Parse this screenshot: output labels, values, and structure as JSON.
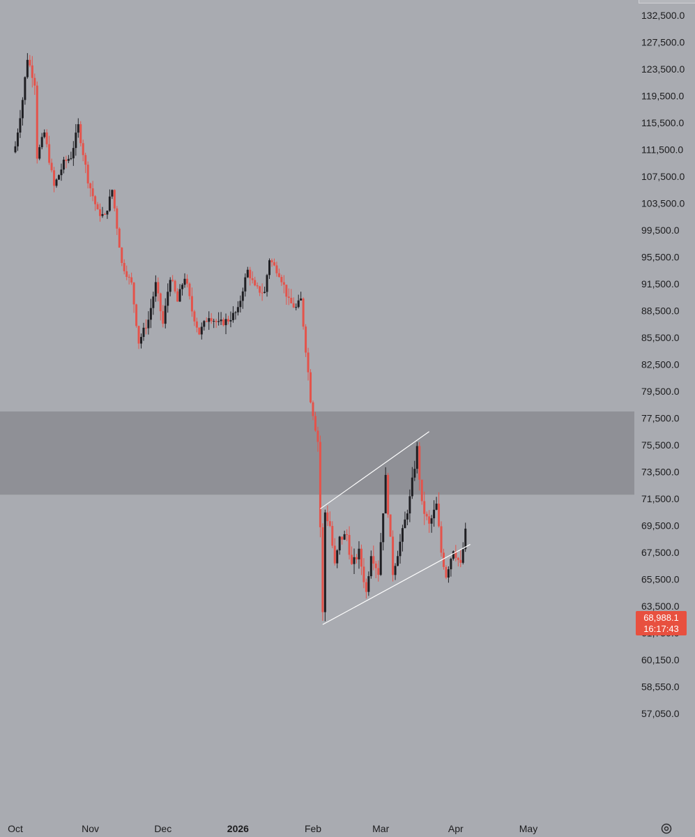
{
  "chart_data": {
    "type": "candlestick",
    "title": "",
    "xlabel": "",
    "ylabel": "",
    "x_range": [
      "2025-10-01",
      "2026-05-18"
    ],
    "y_ticks": [
      {
        "value": 132500,
        "label": "132,500.0"
      },
      {
        "value": 127500,
        "label": "127,500.0"
      },
      {
        "value": 123500,
        "label": "123,500.0"
      },
      {
        "value": 119500,
        "label": "119,500.0"
      },
      {
        "value": 115500,
        "label": "115,500.0"
      },
      {
        "value": 111500,
        "label": "111,500.0"
      },
      {
        "value": 107500,
        "label": "107,500.0"
      },
      {
        "value": 103500,
        "label": "103,500.0"
      },
      {
        "value": 99500,
        "label": "99,500.0"
      },
      {
        "value": 95500,
        "label": "95,500.0"
      },
      {
        "value": 91500,
        "label": "91,500.0"
      },
      {
        "value": 88500,
        "label": "88,500.0"
      },
      {
        "value": 85500,
        "label": "85,500.0"
      },
      {
        "value": 82500,
        "label": "82,500.0"
      },
      {
        "value": 79500,
        "label": "79,500.0"
      },
      {
        "value": 77500,
        "label": "77,500.0"
      },
      {
        "value": 75500,
        "label": "75,500.0"
      },
      {
        "value": 73500,
        "label": "73,500.0"
      },
      {
        "value": 71500,
        "label": "71,500.0"
      },
      {
        "value": 69500,
        "label": "69,500.0"
      },
      {
        "value": 67500,
        "label": "67,500.0"
      },
      {
        "value": 65500,
        "label": "65,500.0"
      },
      {
        "value": 63500,
        "label": "63,500.0"
      },
      {
        "value": 61750,
        "label": "61,750.0"
      },
      {
        "value": 60150,
        "label": "60,150.0"
      },
      {
        "value": 58550,
        "label": "58,550.0"
      },
      {
        "value": 57050,
        "label": "57,050.0"
      }
    ],
    "x_ticks": [
      {
        "date": "2025-10-01",
        "label": "Oct",
        "bold": false
      },
      {
        "date": "2025-11-01",
        "label": "Nov",
        "bold": false
      },
      {
        "date": "2025-12-01",
        "label": "Dec",
        "bold": false
      },
      {
        "date": "2026-01-01",
        "label": "2026",
        "bold": true
      },
      {
        "date": "2026-02-01",
        "label": "Feb",
        "bold": false
      },
      {
        "date": "2026-03-01",
        "label": "Mar",
        "bold": false
      },
      {
        "date": "2026-04-01",
        "label": "Apr",
        "bold": false
      },
      {
        "date": "2026-05-01",
        "label": "May",
        "bold": false
      }
    ],
    "anchors": [
      [
        "2025-10-01",
        112000
      ],
      [
        "2025-10-04",
        119000
      ],
      [
        "2025-10-06",
        125200
      ],
      [
        "2025-10-09",
        121500
      ],
      [
        "2025-10-10",
        110500
      ],
      [
        "2025-10-13",
        114000
      ],
      [
        "2025-10-17",
        106000
      ],
      [
        "2025-10-21",
        109500
      ],
      [
        "2025-10-24",
        110500
      ],
      [
        "2025-10-27",
        115000
      ],
      [
        "2025-10-31",
        107000
      ],
      [
        "2025-11-04",
        102200
      ],
      [
        "2025-11-07",
        101500
      ],
      [
        "2025-11-10",
        105500
      ],
      [
        "2025-11-14",
        94500
      ],
      [
        "2025-11-18",
        91500
      ],
      [
        "2025-11-21",
        85000
      ],
      [
        "2025-11-25",
        87500
      ],
      [
        "2025-11-28",
        91500
      ],
      [
        "2025-12-01",
        87000
      ],
      [
        "2025-12-04",
        92500
      ],
      [
        "2025-12-07",
        89500
      ],
      [
        "2025-12-10",
        92500
      ],
      [
        "2025-12-13",
        88500
      ],
      [
        "2025-12-16",
        86000
      ],
      [
        "2025-12-20",
        88000
      ],
      [
        "2025-12-24",
        87000
      ],
      [
        "2025-12-28",
        87500
      ],
      [
        "2026-01-01",
        88500
      ],
      [
        "2026-01-05",
        93500
      ],
      [
        "2026-01-08",
        91000
      ],
      [
        "2026-01-12",
        90500
      ],
      [
        "2026-01-14",
        95200
      ],
      [
        "2026-01-18",
        93000
      ],
      [
        "2026-01-22",
        89500
      ],
      [
        "2026-01-25",
        88800
      ],
      [
        "2026-01-27",
        89700
      ],
      [
        "2026-01-29",
        84200
      ],
      [
        "2026-01-31",
        79000
      ],
      [
        "2026-02-03",
        75800
      ],
      [
        "2026-02-05",
        63000
      ],
      [
        "2026-02-06",
        70500
      ],
      [
        "2026-02-08",
        69500
      ],
      [
        "2026-02-10",
        66500
      ],
      [
        "2026-02-12",
        68500
      ],
      [
        "2026-02-15",
        68800
      ],
      [
        "2026-02-17",
        66500
      ],
      [
        "2026-02-20",
        67500
      ],
      [
        "2026-02-23",
        64500
      ],
      [
        "2026-02-25",
        67500
      ],
      [
        "2026-02-28",
        66000
      ],
      [
        "2026-03-03",
        73000
      ],
      [
        "2026-03-06",
        66000
      ],
      [
        "2026-03-10",
        69000
      ],
      [
        "2026-03-13",
        71500
      ],
      [
        "2026-03-16",
        75200
      ],
      [
        "2026-03-18",
        71000
      ],
      [
        "2026-03-21",
        69500
      ],
      [
        "2026-03-24",
        71000
      ],
      [
        "2026-03-26",
        67500
      ],
      [
        "2026-03-28",
        65800
      ],
      [
        "2026-03-31",
        67800
      ],
      [
        "2026-04-03",
        66500
      ],
      [
        "2026-04-05",
        68989
      ]
    ],
    "zone": {
      "low": 71800,
      "high": 78000,
      "color": "#8f9096"
    },
    "channel": {
      "upper": {
        "start": [
          "2026-02-04",
          70750
        ],
        "end": [
          "2026-03-21",
          76500
        ]
      },
      "lower": {
        "start": [
          "2026-02-05",
          62300
        ],
        "end": [
          "2026-04-07",
          68100
        ]
      }
    },
    "colors": {
      "up": "#1f1f23",
      "down": "#e4534b",
      "background": "#a9abb1",
      "axis_text": "#1c1c1e",
      "channel_line": "#ffffff"
    },
    "legend": "none",
    "grid": false
  },
  "price_label": {
    "price": "68,988.1",
    "countdown": "16:17:43"
  }
}
